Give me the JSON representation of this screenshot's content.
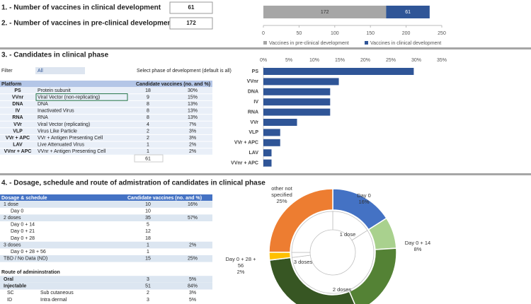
{
  "header": {
    "items": [
      {
        "label": "1. - Number of vaccines in clinical development",
        "value": 61
      },
      {
        "label": "2. - Number of vaccines in pre-clinical development",
        "value": 172
      }
    ]
  },
  "chart_data": [
    {
      "type": "stacked_bar_h",
      "series": [
        {
          "name": "Vaccines in pre-clinical development",
          "color": "#a6a6a6",
          "values": [
            172
          ]
        },
        {
          "name": "Vaccines in clinical development",
          "color": "#2f5597",
          "values": [
            61
          ]
        }
      ],
      "xlim": [
        0,
        250
      ],
      "xticks": [
        0,
        50,
        100,
        150,
        200,
        250
      ],
      "legend": "bottom"
    },
    {
      "type": "bar_h",
      "categories": [
        "PS",
        "VVnr",
        "DNA",
        "IV",
        "RNA",
        "VVr",
        "VLP",
        "VVr + APC",
        "LAV",
        "VVnr + APC"
      ],
      "values": [
        29.5,
        14.8,
        13.1,
        13.1,
        13.1,
        6.6,
        3.3,
        3.3,
        1.6,
        1.6
      ],
      "color": "#2f5597",
      "xlim": [
        0,
        35
      ],
      "xticks": [
        {
          "value": 0,
          "label": "0%"
        },
        {
          "value": 5,
          "label": "5%"
        },
        {
          "value": 10,
          "label": "10%"
        },
        {
          "value": 15,
          "label": "15%"
        },
        {
          "value": 20,
          "label": "20%"
        },
        {
          "value": 25,
          "label": "25%"
        },
        {
          "value": 30,
          "label": "30%"
        },
        {
          "value": 35,
          "label": "35%"
        }
      ]
    },
    {
      "type": "donut",
      "rings": [
        {
          "categories": [
            "Day 0",
            "Day 0 + 14",
            null,
            null,
            "Day 0 + 28 + 56",
            "other not specified"
          ],
          "values": [
            16,
            8,
            19.7,
            29.5,
            2,
            25
          ],
          "value_labels": [
            "16%",
            "8%",
            null,
            null,
            "2%",
            "25%"
          ],
          "colors": [
            "#4472c4",
            "#a9d18e",
            "#548235",
            "#375623",
            "#ffc000",
            "#ed7d31"
          ]
        },
        {
          "categories": [
            "1 dose",
            "2 doses",
            "3 doses",
            null
          ],
          "values": [
            16,
            57,
            2,
            25
          ],
          "colors": [
            "#ffffff",
            "#ffffff",
            "#ffffff",
            "#ffffff"
          ]
        }
      ]
    }
  ],
  "platform": {
    "title": "3. - Candidates in clinical phase",
    "filter_label": "Filter",
    "filter_value": "All",
    "filter_hint": "Select phase of development (default is all)",
    "columns": [
      "Platform",
      "Candidate vaccines (no. and %)"
    ],
    "rows": [
      [
        "PS",
        "Protein subunit",
        18,
        "30%"
      ],
      [
        "VVnr",
        "Viral Vector (non-replicating)",
        9,
        "15%"
      ],
      [
        "DNA",
        "DNA",
        8,
        "13%"
      ],
      [
        "IV",
        "Inactivated Virus",
        8,
        "13%"
      ],
      [
        "RNA",
        "RNA",
        8,
        "13%"
      ],
      [
        "VVr",
        "Viral Vector (replicating)",
        4,
        "7%"
      ],
      [
        "VLP",
        "Virus Like Particle",
        2,
        "3%"
      ],
      [
        "VVr + APC",
        "VVr + Antigen Presenting Cell",
        2,
        "3%"
      ],
      [
        "LAV",
        "Live Attenuated Virus",
        1,
        "2%"
      ],
      [
        "VVnr + APC",
        "VVnr + Antigen Presenting Cell",
        1,
        "2%"
      ]
    ],
    "total": 61
  },
  "dosage": {
    "title": "4. - Dosage, schedule and route of admistration of candidates in clinical phase",
    "columns": [
      "Dosage & schedule",
      "Candidate vaccines (no. and %)"
    ],
    "rows": [
      {
        "label": "1 dose",
        "count": 10,
        "pct": "16%",
        "group": true
      },
      {
        "label": "Day 0",
        "count": 10
      },
      {
        "label": "2 doses",
        "count": 35,
        "pct": "57%",
        "group": true
      },
      {
        "label": "Day 0 + 14",
        "count": 5
      },
      {
        "label": "Day 0 + 21",
        "count": 12
      },
      {
        "label": "Day 0 + 28",
        "count": 18
      },
      {
        "label": "3 doses",
        "count": 1,
        "pct": "2%",
        "group": true
      },
      {
        "label": "Day 0 + 28 + 56",
        "count": 1
      },
      {
        "label": "TBD / No Data (ND)",
        "count": 15,
        "pct": "25%",
        "group": true
      }
    ],
    "route_title": "Route of admininstration",
    "route_rows": [
      {
        "code": "Oral",
        "count": 3,
        "pct": "5%",
        "group": true
      },
      {
        "code": "Injectable",
        "count": 51,
        "pct": "84%",
        "group": true
      },
      {
        "code": "SC",
        "name": "Sub cutaneous",
        "count": 2,
        "pct": "3%"
      },
      {
        "code": "ID",
        "name": "Intra dermal",
        "count": 3,
        "pct": "5%"
      }
    ]
  }
}
